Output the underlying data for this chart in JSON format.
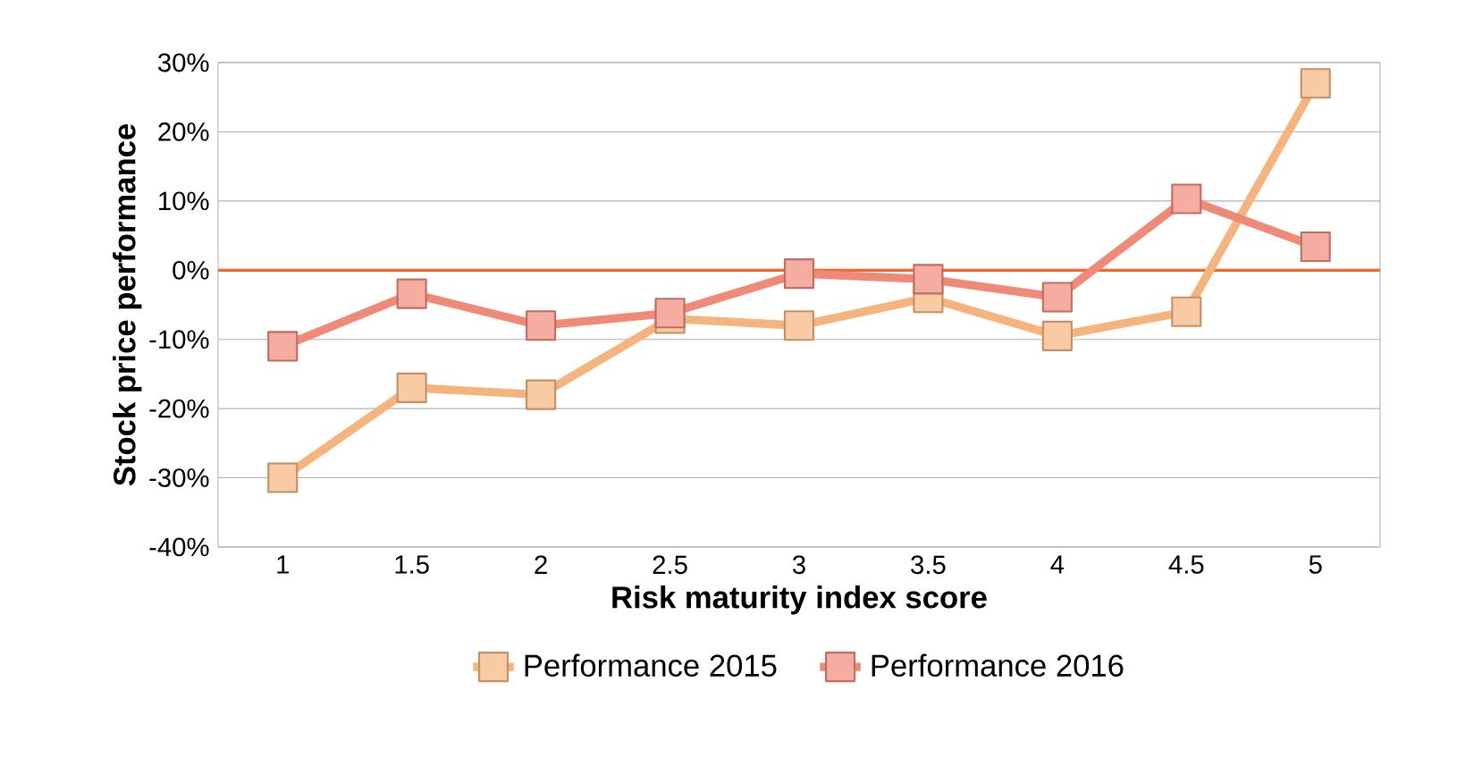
{
  "chart_data": {
    "type": "line",
    "xlabel": "Risk maturity index score",
    "ylabel": "Stock price performance",
    "categories": [
      "1",
      "1.5",
      "2",
      "2.5",
      "3",
      "3.5",
      "4",
      "4.5",
      "5"
    ],
    "series": [
      {
        "name": "Performance 2015",
        "color": "#f5b47e",
        "values": [
          -30,
          -17,
          -18,
          -7,
          -8,
          -4,
          -9.5,
          -6,
          27
        ]
      },
      {
        "name": "Performance 2016",
        "color": "#f08a78",
        "values": [
          -11,
          -3.4,
          -8,
          -6.2,
          -0.5,
          -1.3,
          -3.9,
          10.3,
          3.4
        ]
      }
    ],
    "ylim": [
      -40,
      30
    ],
    "yticks": [
      {
        "value": -40,
        "label": "-40%"
      },
      {
        "value": -30,
        "label": "-30%"
      },
      {
        "value": -20,
        "label": "-20%"
      },
      {
        "value": -10,
        "label": "-10%"
      },
      {
        "value": 0,
        "label": "0%"
      },
      {
        "value": 10,
        "label": "10%"
      },
      {
        "value": 20,
        "label": "20%"
      },
      {
        "value": 30,
        "label": "30%"
      }
    ],
    "ref_lines": [
      {
        "axis": "y",
        "value": 0,
        "color": "#ee6a2c"
      }
    ],
    "grid": "y",
    "legend": "bottom",
    "marker": "square",
    "line_style": "solid"
  }
}
